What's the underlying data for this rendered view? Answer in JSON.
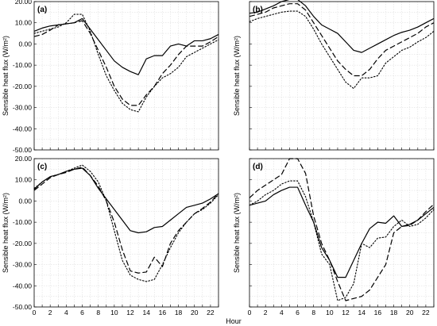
{
  "figure": {
    "xlabel": "Hour",
    "ylabel": "Sensible heat flux (W/m²)"
  },
  "chart_data": [
    {
      "type": "line",
      "panel_label": "(a)",
      "ylabel": "Sensible heat flux (W/m²)",
      "xlim": [
        0,
        23
      ],
      "ylim": [
        -50,
        20
      ],
      "grid": true,
      "y_ticks": [
        "20.00",
        "10.00",
        "0.00",
        "-10.00",
        "-20.00",
        "-30.00",
        "-40.00",
        "-50.00"
      ],
      "x_ticks": [],
      "x": [
        0,
        1,
        2,
        3,
        4,
        5,
        6,
        7,
        8,
        9,
        10,
        11,
        12,
        13,
        14,
        15,
        16,
        17,
        18,
        19,
        20,
        21,
        22,
        23
      ],
      "series": [
        {
          "style": "solid",
          "values": [
            6,
            7.5,
            8.5,
            9,
            9.5,
            10,
            12,
            7,
            2,
            -3,
            -8,
            -11,
            -13,
            -14.5,
            -7,
            -5.5,
            -5.5,
            -1,
            0,
            -1,
            1.5,
            1.5,
            2.5,
            4.5
          ]
        },
        {
          "style": "dashed",
          "values": [
            3.5,
            4.5,
            6.5,
            9,
            9.5,
            10,
            11,
            5,
            -3,
            -11,
            -20,
            -26,
            -29,
            -29,
            -24,
            -20,
            -14,
            -10,
            -5,
            -1,
            -1,
            -1,
            1,
            3.5
          ]
        },
        {
          "style": "dotted",
          "values": [
            5,
            6,
            7,
            8,
            10,
            14,
            14,
            6,
            -5,
            -15,
            -22,
            -28,
            -31,
            -32,
            -25,
            -20,
            -16,
            -14,
            -11,
            -6,
            -4,
            -2,
            0,
            2
          ]
        }
      ]
    },
    {
      "type": "line",
      "panel_label": "(b)",
      "xlim": [
        0,
        23
      ],
      "ylim": [
        -50,
        20
      ],
      "grid": true,
      "y_ticks": [],
      "x_ticks": [],
      "x": [
        0,
        1,
        2,
        3,
        4,
        5,
        6,
        7,
        8,
        9,
        10,
        11,
        12,
        13,
        14,
        15,
        16,
        17,
        18,
        19,
        20,
        21,
        22,
        23
      ],
      "series": [
        {
          "style": "solid",
          "values": [
            14.5,
            15,
            16.5,
            18,
            20,
            21,
            21,
            18,
            13,
            9,
            7,
            5,
            1,
            -3,
            -4,
            -2,
            0,
            2,
            4,
            5.5,
            6.5,
            8,
            10,
            12
          ]
        },
        {
          "style": "dashed",
          "values": [
            13,
            14,
            15,
            17,
            18,
            19,
            19,
            16,
            10,
            4,
            -2,
            -8,
            -12,
            -15,
            -15,
            -12,
            -7,
            -3,
            -1,
            1,
            3,
            5,
            8,
            10
          ]
        },
        {
          "style": "dotted",
          "values": [
            10.5,
            12,
            13,
            14,
            15,
            15.5,
            15.5,
            13,
            7,
            0,
            -6,
            -12,
            -18,
            -21,
            -16,
            -16,
            -15,
            -9,
            -6,
            -3,
            -1.5,
            1,
            3,
            6
          ]
        }
      ]
    },
    {
      "type": "line",
      "panel_label": "(c)",
      "ylabel": "Sensible heat flux (W/m²)",
      "xlim": [
        0,
        23
      ],
      "ylim": [
        -50,
        20
      ],
      "grid": true,
      "y_ticks": [
        "20.00",
        "10.00",
        "0.00",
        "-10.00",
        "-20.00",
        "-30.00",
        "-40.00",
        "-50.00"
      ],
      "x_ticks": [
        "0",
        "2",
        "4",
        "6",
        "8",
        "10",
        "12",
        "14",
        "16",
        "18",
        "20",
        "22"
      ],
      "x": [
        0,
        1,
        2,
        3,
        4,
        5,
        6,
        7,
        8,
        9,
        10,
        11,
        12,
        13,
        14,
        15,
        16,
        17,
        18,
        19,
        20,
        21,
        22,
        23
      ],
      "series": [
        {
          "style": "solid",
          "values": [
            5.5,
            9,
            11.5,
            12.5,
            14,
            15,
            15.5,
            12,
            6,
            1,
            -4,
            -9,
            -14,
            -15,
            -14.5,
            -12.5,
            -12,
            -9,
            -6,
            -3,
            -2,
            -1,
            1,
            3.5
          ]
        },
        {
          "style": "dashed",
          "values": [
            5,
            8,
            11,
            12.5,
            13.5,
            15,
            16,
            12,
            7,
            0,
            -10,
            -23,
            -33,
            -34,
            -33.5,
            -26.5,
            -31,
            -20,
            -14,
            -10,
            -6,
            -3.5,
            -0.5,
            3.5
          ]
        },
        {
          "style": "dotted",
          "values": [
            6,
            9,
            11.5,
            12.5,
            14,
            15.5,
            17,
            14,
            9,
            0,
            -14,
            -28,
            -35,
            -37,
            -38,
            -37,
            -30,
            -22,
            -15,
            -10,
            -6,
            -4,
            -1,
            3
          ]
        }
      ]
    },
    {
      "type": "line",
      "panel_label": "(d)",
      "xlim": [
        0,
        23
      ],
      "ylim": [
        -50,
        20
      ],
      "grid": true,
      "y_ticks": [],
      "x_ticks": [
        "0",
        "2",
        "4",
        "6",
        "8",
        "10",
        "12",
        "14",
        "16",
        "18",
        "20",
        "22"
      ],
      "x": [
        0,
        1,
        2,
        3,
        4,
        5,
        6,
        7,
        8,
        9,
        10,
        11,
        12,
        13,
        14,
        15,
        16,
        17,
        18,
        19,
        20,
        21,
        22,
        23
      ],
      "series": [
        {
          "style": "solid",
          "values": [
            -2,
            -1,
            0,
            3,
            5,
            6.5,
            6.5,
            -2,
            -10,
            -22,
            -28,
            -36,
            -36,
            -28,
            -20,
            -13,
            -10,
            -10.5,
            -7,
            -12,
            -11,
            -9,
            -6,
            -3
          ]
        },
        {
          "style": "dashed",
          "values": [
            1.5,
            5,
            7.5,
            10,
            12.5,
            20,
            20,
            13,
            -7,
            -20,
            -28,
            -38,
            -47,
            -46,
            -45,
            -42,
            -36,
            -30,
            -15,
            -12,
            -11.5,
            -9,
            -5,
            -1.5
          ]
        },
        {
          "style": "dotted",
          "values": [
            -2,
            0,
            3,
            5,
            8,
            9.5,
            9.5,
            2,
            -10,
            -25,
            -30,
            -47,
            -45.5,
            -39,
            -20,
            -22,
            -17.5,
            -17,
            -12,
            -9,
            -12,
            -11,
            -8,
            -4
          ]
        }
      ]
    }
  ]
}
